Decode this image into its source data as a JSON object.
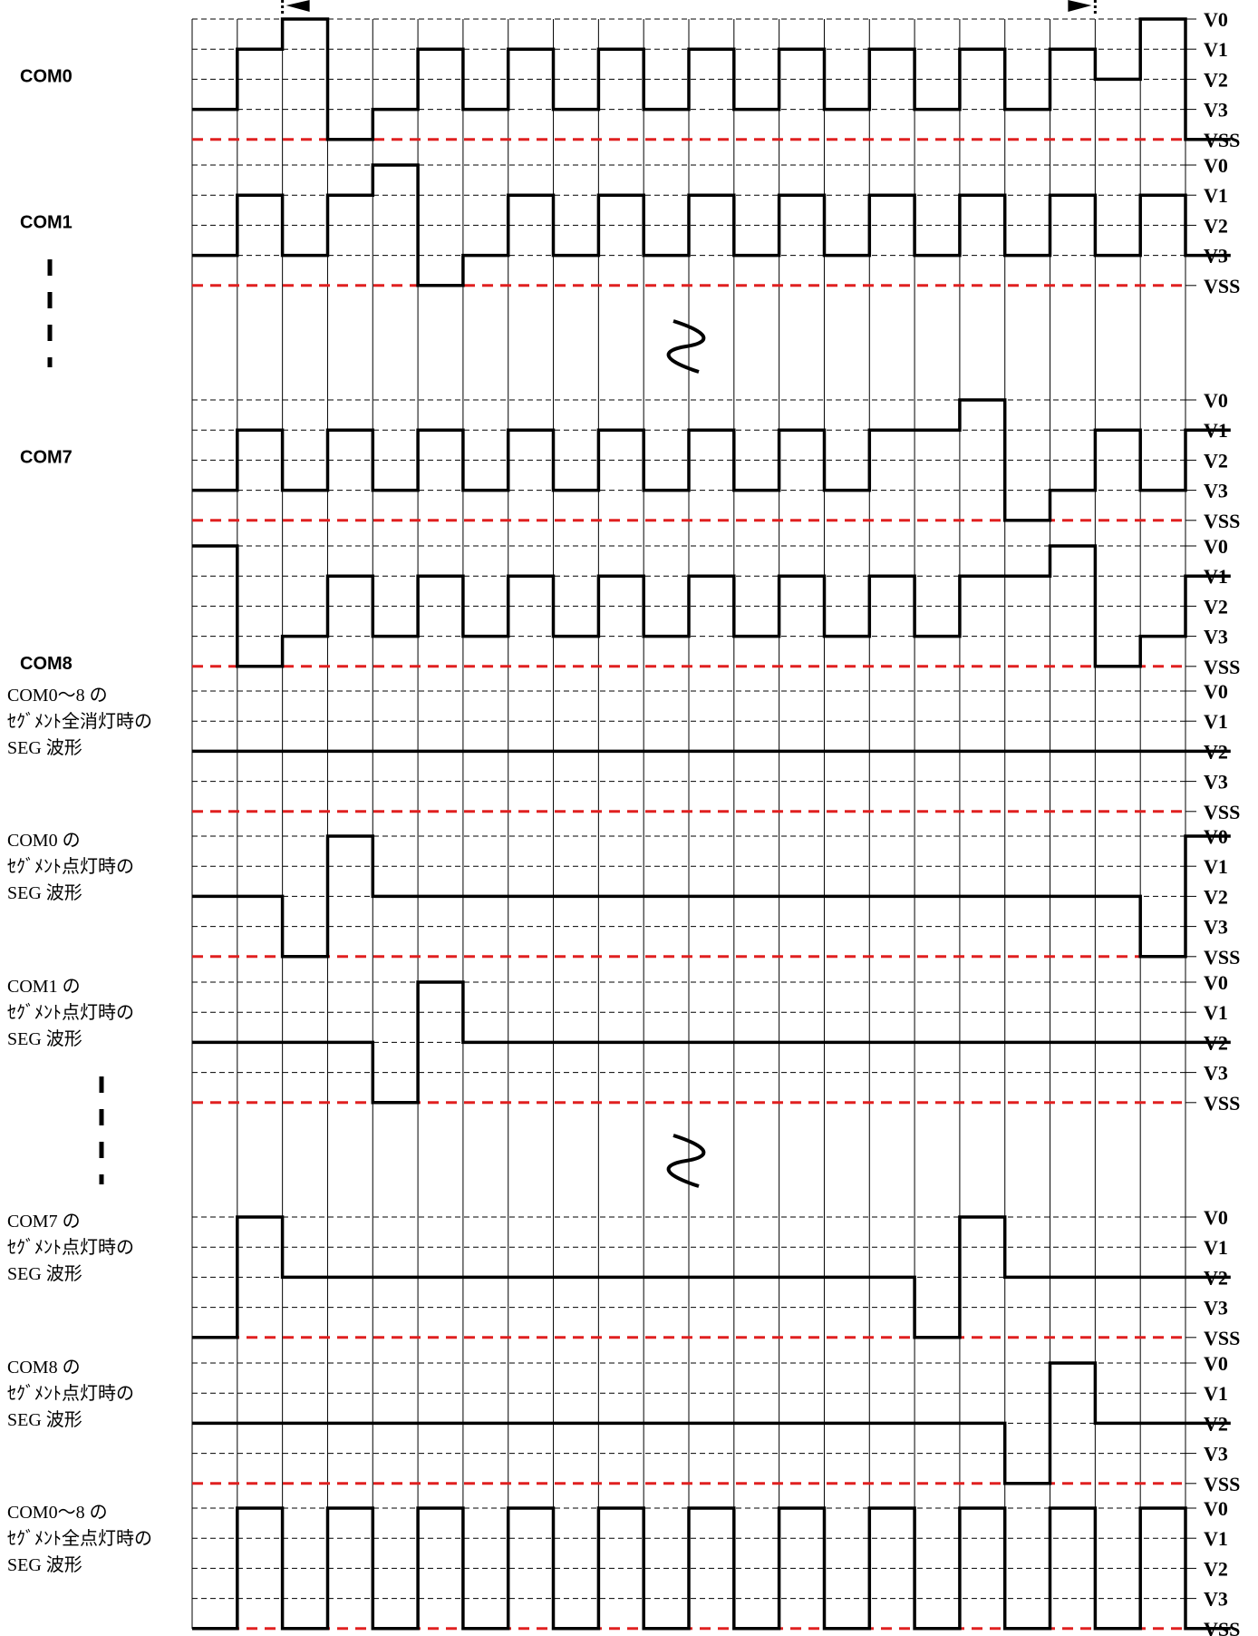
{
  "level_names": [
    "V0",
    "V1",
    "V2",
    "V3",
    "VSS"
  ],
  "frame_slots": 22,
  "colors": {
    "trace": "#000000",
    "grid": "#000000",
    "vss_line": "#e02020"
  },
  "panels": [
    {
      "id": "com0",
      "style": "bold-sans",
      "label": [
        "COM0"
      ],
      "wave": [
        3,
        1,
        0,
        4,
        3,
        1,
        3,
        1,
        3,
        1,
        3,
        1,
        3,
        1,
        3,
        1,
        3,
        1,
        3,
        1,
        2,
        0,
        4
      ]
    },
    {
      "id": "com1",
      "style": "bold-sans",
      "label": [
        "COM1"
      ],
      "wave": [
        3,
        1,
        3,
        1,
        0,
        4,
        3,
        1,
        3,
        1,
        3,
        1,
        3,
        1,
        3,
        1,
        3,
        1,
        3,
        1,
        3,
        1,
        3
      ]
    },
    {
      "id": "com7",
      "style": "bold-sans",
      "label": [
        "COM7"
      ],
      "wave": [
        3,
        1,
        3,
        1,
        3,
        1,
        3,
        1,
        3,
        1,
        3,
        1,
        3,
        1,
        3,
        1,
        1,
        0,
        4,
        3,
        1,
        3,
        1
      ]
    },
    {
      "id": "com8",
      "style": "bold-sans",
      "label": [
        "COM8"
      ],
      "wave": [
        0,
        4,
        3,
        1,
        3,
        1,
        3,
        1,
        3,
        1,
        3,
        1,
        3,
        1,
        3,
        1,
        3,
        1,
        1,
        0,
        4,
        3,
        1
      ]
    },
    {
      "id": "seg-all-off",
      "style": "serif",
      "label": [
        "COM0～8 の",
        "ｾｸﾞﾒﾝﾄ全消灯時の",
        "SEG 波形"
      ],
      "wave": [
        2,
        2,
        2,
        2,
        2,
        2,
        2,
        2,
        2,
        2,
        2,
        2,
        2,
        2,
        2,
        2,
        2,
        2,
        2,
        2,
        2,
        2,
        2
      ]
    },
    {
      "id": "seg-com0",
      "style": "serif",
      "label": [
        "COM0 の",
        "ｾｸﾞﾒﾝﾄ点灯時の",
        "SEG 波形"
      ],
      "wave": [
        2,
        2,
        4,
        0,
        2,
        2,
        2,
        2,
        2,
        2,
        2,
        2,
        2,
        2,
        2,
        2,
        2,
        2,
        2,
        2,
        2,
        4,
        0
      ]
    },
    {
      "id": "seg-com1",
      "style": "serif",
      "label": [
        "COM1 の",
        "ｾｸﾞﾒﾝﾄ点灯時の",
        "SEG 波形"
      ],
      "wave": [
        2,
        2,
        2,
        2,
        4,
        0,
        2,
        2,
        2,
        2,
        2,
        2,
        2,
        2,
        2,
        2,
        2,
        2,
        2,
        2,
        2,
        2,
        2
      ]
    },
    {
      "id": "seg-com7",
      "style": "serif",
      "label": [
        "COM7 の",
        "ｾｸﾞﾒﾝﾄ点灯時の",
        "SEG 波形"
      ],
      "wave": [
        4,
        0,
        2,
        2,
        2,
        2,
        2,
        2,
        2,
        2,
        2,
        2,
        2,
        2,
        2,
        2,
        4,
        0,
        2,
        2,
        2,
        2,
        2
      ]
    },
    {
      "id": "seg-com8",
      "style": "serif",
      "label": [
        "COM8 の",
        "ｾｸﾞﾒﾝﾄ点灯時の",
        "SEG 波形"
      ],
      "wave": [
        2,
        2,
        2,
        2,
        2,
        2,
        2,
        2,
        2,
        2,
        2,
        2,
        2,
        2,
        2,
        2,
        2,
        2,
        4,
        0,
        2,
        2,
        2
      ]
    },
    {
      "id": "seg-all-on",
      "style": "serif",
      "label": [
        "COM0～8 の",
        "ｾｸﾞﾒﾝﾄ全点灯時の",
        "SEG 波形"
      ],
      "wave": [
        4,
        0,
        4,
        0,
        4,
        0,
        4,
        0,
        4,
        0,
        4,
        0,
        4,
        0,
        4,
        0,
        4,
        0,
        4,
        0,
        4,
        0,
        4
      ]
    }
  ],
  "gap_markers": [
    "dashed-bar",
    "break-tilde"
  ]
}
